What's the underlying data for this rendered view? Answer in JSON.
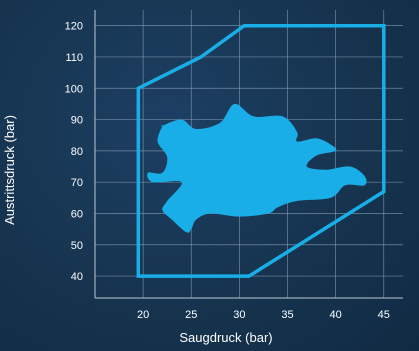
{
  "chart_data": {
    "type": "area",
    "title": "",
    "xlabel": "Saugdruck (bar)",
    "ylabel": "Austrittsdruck (bar)",
    "xlim": [
      15,
      47
    ],
    "ylim": [
      33,
      125
    ],
    "xticks": [
      20,
      25,
      30,
      35,
      40,
      45
    ],
    "yticks": [
      40,
      50,
      60,
      70,
      80,
      90,
      100,
      110,
      120
    ],
    "grid": true,
    "legend": "none",
    "colors": {
      "envelope": "#19aee8",
      "blob": "#19aee8",
      "grid": "#8fa6bd",
      "axis": "#b9c8d6"
    },
    "series": [
      {
        "kind": "envelope",
        "x": [
          19.5,
          19.5,
          26,
          30.5,
          45,
          45,
          31,
          19.5
        ],
        "y": [
          40,
          100,
          110,
          120,
          120,
          67,
          40,
          40
        ]
      },
      {
        "kind": "filled-region",
        "x": [
          22,
          24,
          25.5,
          28,
          29.5,
          31.5,
          34.5,
          36,
          36,
          38,
          39.5,
          40,
          38,
          37,
          39,
          41.5,
          43,
          43,
          41,
          39.5,
          36,
          34,
          33,
          30,
          27,
          25.5,
          25,
          24.5,
          23,
          22,
          22.5,
          24,
          21,
          20.5,
          22,
          22.5,
          21.5,
          22
        ],
        "y": [
          88,
          90,
          87,
          89,
          95,
          91,
          91,
          86,
          83,
          84,
          82,
          80,
          78.5,
          75,
          74,
          75,
          72,
          69,
          69,
          65,
          64,
          62,
          60,
          59,
          60,
          58,
          55,
          54,
          58,
          61,
          64,
          70,
          70,
          73,
          73,
          78,
          83,
          88
        ]
      }
    ]
  }
}
